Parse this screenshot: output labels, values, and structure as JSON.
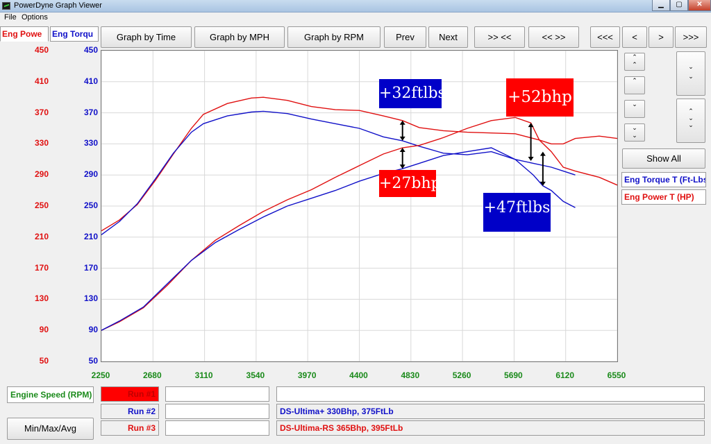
{
  "window": {
    "title": "PowerDyne Graph Viewer",
    "minimize": "▁",
    "maximize": "▢",
    "close": "✕"
  },
  "menu": [
    "File",
    "Options"
  ],
  "tabs": {
    "power": "Eng Powe",
    "torque": "Eng Torqu"
  },
  "toolbar": {
    "by_time": "Graph by Time",
    "by_mph": "Graph by MPH",
    "by_rpm": "Graph by RPM",
    "prev": "Prev",
    "next": "Next",
    "zoom_in": ">> <<",
    "zoom_out": "<< >>",
    "pan_far_left": "<<<",
    "pan_left": "<",
    "pan_right": ">",
    "pan_far_right": ">>>"
  },
  "colors": {
    "power": "#e01010",
    "torque": "#1010c8",
    "rpm": "#1a8a1a",
    "annot_red": "#ff0000",
    "annot_blue": "#0000c8"
  },
  "side": {
    "show_all": "Show All",
    "legend_torque": "Eng Torque T (Ft-Lbs)",
    "legend_power": "Eng Power T (HP)"
  },
  "bottom": {
    "x_channel": "Engine Speed (RPM)",
    "min_max": "Min/Max/Avg",
    "run1": "Run #1",
    "run2": "Run #2",
    "run3": "Run #3",
    "run1_desc": "",
    "run2_desc": "DS-Ultima+ 330Bhp, 375FtLb",
    "run3_desc": "DS-Ultima-RS 365Bhp, 395FtLb"
  },
  "chart_data": {
    "type": "line",
    "xlabel": "Engine Speed (RPM)",
    "xlim": [
      2250,
      6550
    ],
    "x_ticks": [
      2250,
      2680,
      3110,
      3540,
      3970,
      4400,
      4830,
      5260,
      5690,
      6120,
      6550
    ],
    "ylim": [
      50,
      450
    ],
    "y_ticks": [
      50,
      90,
      130,
      170,
      210,
      250,
      290,
      330,
      370,
      410,
      450
    ],
    "grid": true,
    "series": [
      {
        "name": "Run #3 Eng Torque",
        "color": "#e01010",
        "x": [
          2250,
          2400,
          2550,
          2700,
          2850,
          3000,
          3100,
          3300,
          3500,
          3600,
          3800,
          4000,
          4200,
          4400,
          4600,
          4760,
          4900,
          5100,
          5300,
          5500,
          5700,
          5900,
          6000,
          6100,
          6200,
          6400,
          6550
        ],
        "y": [
          218,
          232,
          252,
          283,
          317,
          350,
          368,
          382,
          389,
          390,
          386,
          378,
          374,
          373,
          366,
          360,
          351,
          347,
          345,
          344,
          343,
          335,
          330,
          330,
          337,
          340,
          337
        ]
      },
      {
        "name": "Run #2 Eng Torque",
        "color": "#1010c8",
        "x": [
          2250,
          2400,
          2550,
          2700,
          2850,
          3000,
          3100,
          3300,
          3500,
          3600,
          3800,
          4000,
          4200,
          4400,
          4600,
          4760,
          4900,
          5100,
          5300,
          5500,
          5700,
          5850,
          6000,
          6100,
          6200
        ],
        "y": [
          213,
          230,
          253,
          285,
          318,
          345,
          356,
          366,
          371,
          372,
          369,
          362,
          356,
          350,
          339,
          334,
          327,
          318,
          316,
          320,
          310,
          305,
          300,
          295,
          290
        ]
      },
      {
        "name": "Run #3 Eng Power",
        "color": "#e01010",
        "x": [
          2250,
          2400,
          2600,
          2800,
          3000,
          3200,
          3400,
          3600,
          3800,
          4000,
          4200,
          4400,
          4600,
          4760,
          4900,
          5100,
          5300,
          5500,
          5700,
          5830,
          5900,
          6000,
          6100,
          6200,
          6400,
          6550
        ],
        "y": [
          90,
          101,
          119,
          148,
          180,
          206,
          225,
          243,
          258,
          271,
          287,
          302,
          317,
          325,
          328,
          338,
          350,
          360,
          364,
          357,
          335,
          320,
          300,
          295,
          287,
          277
        ]
      },
      {
        "name": "Run #2 Eng Power",
        "color": "#1010c8",
        "x": [
          2250,
          2400,
          2600,
          2800,
          3000,
          3200,
          3400,
          3600,
          3800,
          4000,
          4200,
          4400,
          4600,
          4760,
          4900,
          5100,
          5300,
          5500,
          5700,
          5850,
          5930,
          6000,
          6100,
          6200
        ],
        "y": [
          90,
          102,
          120,
          150,
          180,
          203,
          220,
          236,
          250,
          260,
          270,
          282,
          292,
          298,
          305,
          315,
          320,
          325,
          310,
          290,
          276,
          270,
          256,
          248
        ]
      }
    ],
    "annotations": [
      "+32ftlbs",
      "+52bhp",
      "+27bhp",
      "+47ftlbs"
    ]
  }
}
